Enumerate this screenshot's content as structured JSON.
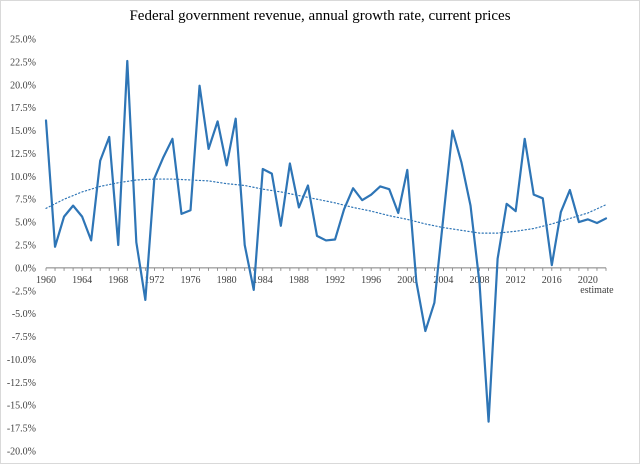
{
  "chart_data": {
    "type": "line",
    "title": "Federal government revenue, annual growth rate, current prices",
    "xlabel": "",
    "ylabel": "",
    "ylim": [
      -20,
      25
    ],
    "xlim": [
      1960,
      2022
    ],
    "y_ticks": [
      "25.0%",
      "22.5%",
      "20.0%",
      "17.5%",
      "15.0%",
      "12.5%",
      "10.0%",
      "7.5%",
      "5.0%",
      "2.5%",
      "0.0%",
      "-2.5%",
      "-5.0%",
      "-7.5%",
      "-10.0%",
      "-12.5%",
      "-15.0%",
      "-17.5%",
      "-20.0%"
    ],
    "y_tick_values": [
      25,
      22.5,
      20,
      17.5,
      15,
      12.5,
      10,
      7.5,
      5,
      2.5,
      0,
      -2.5,
      -5,
      -7.5,
      -10,
      -12.5,
      -15,
      -17.5,
      -20
    ],
    "x_ticks": [
      "1960",
      "1964",
      "1968",
      "1972",
      "1976",
      "1980",
      "1984",
      "1988",
      "1992",
      "1996",
      "2000",
      "2004",
      "2008",
      "2012",
      "2016",
      "2020"
    ],
    "x_tick_values": [
      1960,
      1964,
      1968,
      1972,
      1976,
      1980,
      1984,
      1988,
      1992,
      1996,
      2000,
      2004,
      2008,
      2012,
      2016,
      2020
    ],
    "grid": false,
    "legend": "none",
    "annotation": {
      "text": "estimate",
      "year": 2021
    },
    "colors": {
      "line": "#2e75b6",
      "trend": "#2e75b6",
      "axis": "#7f7f7f",
      "text": "#404040"
    },
    "series": [
      {
        "style": "solid",
        "x": [
          1960,
          1961,
          1962,
          1963,
          1964,
          1965,
          1966,
          1967,
          1968,
          1969,
          1970,
          1971,
          1972,
          1973,
          1974,
          1975,
          1976,
          1977,
          1978,
          1979,
          1980,
          1981,
          1982,
          1983,
          1984,
          1985,
          1986,
          1987,
          1988,
          1989,
          1990,
          1991,
          1992,
          1993,
          1994,
          1995,
          1996,
          1997,
          1998,
          1999,
          2000,
          2001,
          2002,
          2003,
          2004,
          2005,
          2006,
          2007,
          2008,
          2009,
          2010,
          2011,
          2012,
          2013,
          2014,
          2015,
          2016,
          2017,
          2018,
          2019,
          2020,
          2021,
          2022
        ],
        "values": [
          16.1,
          2.3,
          5.6,
          6.8,
          5.6,
          3.0,
          11.7,
          14.3,
          2.5,
          22.6,
          2.8,
          -3.5,
          9.8,
          12.1,
          14.1,
          5.9,
          6.3,
          19.9,
          13.0,
          16.0,
          11.2,
          16.3,
          2.5,
          -2.4,
          10.8,
          10.3,
          4.6,
          11.4,
          6.6,
          9.0,
          3.5,
          3.0,
          3.1,
          6.4,
          8.7,
          7.4,
          8.0,
          8.9,
          8.6,
          6.0,
          10.7,
          -1.5,
          -6.9,
          -3.8,
          5.6,
          15.0,
          11.5,
          6.8,
          -1.7,
          -16.8,
          1.0,
          7.0,
          6.2,
          14.1,
          8.0,
          7.6,
          0.3,
          6.1,
          8.5,
          5.0,
          5.3,
          4.9,
          5.4
        ]
      },
      {
        "style": "dotted",
        "trend": true,
        "x": [
          1960,
          1962,
          1964,
          1966,
          1968,
          1970,
          1972,
          1974,
          1976,
          1978,
          1980,
          1982,
          1984,
          1986,
          1988,
          1990,
          1992,
          1994,
          1996,
          1998,
          2000,
          2002,
          2004,
          2006,
          2008,
          2010,
          2012,
          2014,
          2016,
          2018,
          2020,
          2022
        ],
        "values": [
          6.5,
          7.5,
          8.3,
          8.9,
          9.3,
          9.6,
          9.7,
          9.7,
          9.6,
          9.5,
          9.2,
          9.0,
          8.6,
          8.3,
          7.9,
          7.5,
          7.1,
          6.6,
          6.2,
          5.7,
          5.3,
          4.8,
          4.4,
          4.1,
          3.8,
          3.8,
          4.0,
          4.3,
          4.8,
          5.4,
          6.0,
          6.9
        ]
      }
    ]
  }
}
